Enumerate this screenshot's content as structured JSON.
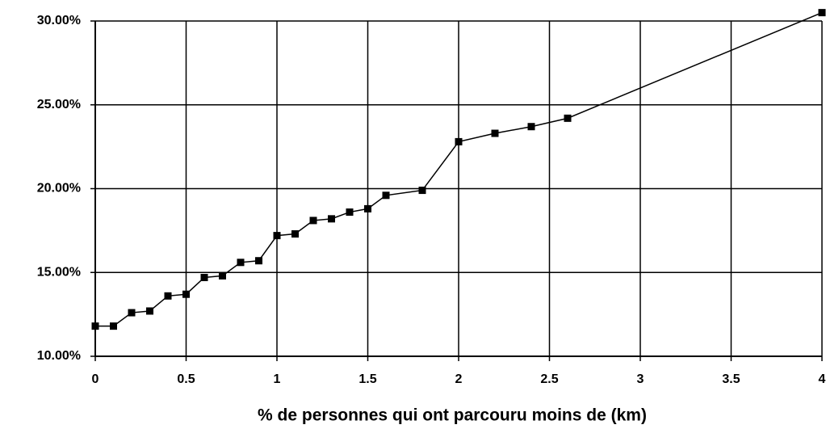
{
  "chart_data": {
    "type": "line",
    "x_label": "% de personnes qui ont parcouru moins de (km)",
    "x": [
      0,
      0.1,
      0.2,
      0.3,
      0.4,
      0.5,
      0.6,
      0.7,
      0.8,
      0.9,
      1.0,
      1.1,
      1.2,
      1.3,
      1.4,
      1.5,
      1.6,
      1.8,
      2.0,
      2.2,
      2.4,
      2.6,
      4.0
    ],
    "series": [
      {
        "color": "#000000",
        "values": [
          11.8,
          11.8,
          12.6,
          12.7,
          13.6,
          13.7,
          14.7,
          14.8,
          15.6,
          15.7,
          17.2,
          17.3,
          18.1,
          18.2,
          18.6,
          18.8,
          19.6,
          19.9,
          22.8,
          23.3,
          23.7,
          24.2,
          30.5
        ]
      }
    ],
    "xlim": [
      0,
      4
    ],
    "xticks": [
      0,
      0.5,
      1,
      1.5,
      2,
      2.5,
      3,
      3.5,
      4
    ],
    "ylim": [
      10,
      30
    ],
    "yticks": [
      {
        "value": 10,
        "label": "10.00%"
      },
      {
        "value": 15,
        "label": "15.00%"
      },
      {
        "value": 20,
        "label": "20.00%"
      },
      {
        "value": 25,
        "label": "25.00%"
      },
      {
        "value": 30,
        "label": "30.00%"
      }
    ],
    "grid": true
  }
}
